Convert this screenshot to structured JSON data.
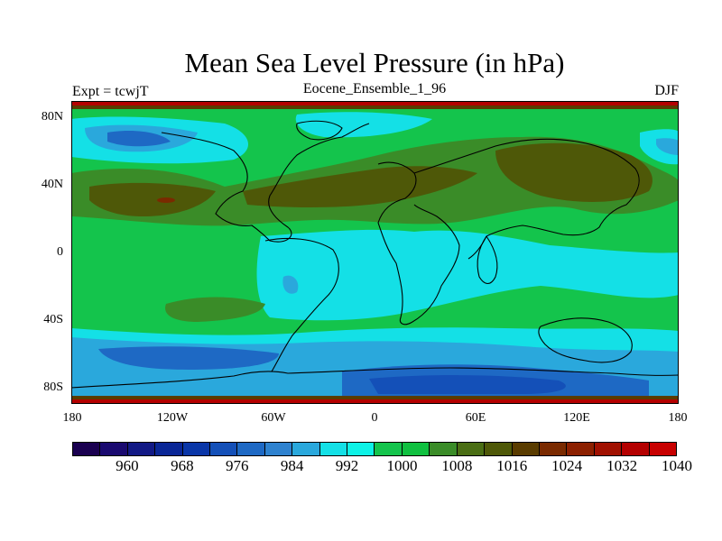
{
  "title": "Mean Sea Level Pressure (in hPa)",
  "experiment_label": "Expt = tcwjT",
  "ensemble_label": "Eocene_Ensemble_1_96",
  "season_label": "DJF",
  "y_ticks": [
    "80N",
    "40N",
    "0",
    "40S",
    "80S"
  ],
  "x_ticks": [
    "180",
    "120W",
    "60W",
    "0",
    "60E",
    "120E",
    "180"
  ],
  "colorbar": {
    "colors": [
      "#1a0050",
      "#1a0a70",
      "#121985",
      "#0a2696",
      "#0a36a8",
      "#1450b8",
      "#1e69c4",
      "#2e82cf",
      "#2aa8dc",
      "#14e0e6",
      "#0ef2e6",
      "#14c44c",
      "#10c040",
      "#3a8c28",
      "#4a6e14",
      "#4e5808",
      "#5a3c00",
      "#7a2a00",
      "#8c2000",
      "#a01000",
      "#b40000",
      "#c80000"
    ],
    "labels": [
      "960",
      "968",
      "976",
      "984",
      "992",
      "1000",
      "1008",
      "1016",
      "1024",
      "1032",
      "1040"
    ]
  },
  "map_colors": {
    "deep_blue": "#1450b8",
    "mid_blue": "#2e82cf",
    "light_blue": "#2aa8dc",
    "cyan": "#14e0e6",
    "green": "#14c44c",
    "olive": "#3a8c28",
    "brown": "#4e5808",
    "dark_brown": "#5a3c00",
    "red_band": "#b40000"
  }
}
